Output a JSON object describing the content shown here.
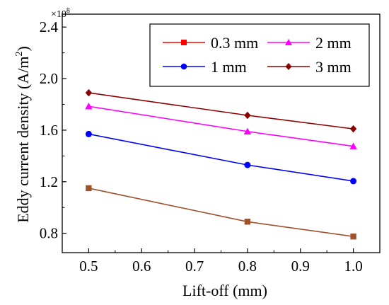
{
  "chart_data": {
    "type": "line",
    "xlabel": "Lift-off (mm)",
    "ylabel": "Eddy current density (A/m",
    "ylabel_sup": "2",
    "ylabel_close": ")",
    "y_multiplier": "×10",
    "y_multiplier_exp": "8",
    "xlim": [
      0.45,
      1.05
    ],
    "ylim": [
      0.65,
      2.5
    ],
    "xticks": [
      "0.5",
      "0.6",
      "0.7",
      "0.8",
      "0.9",
      "1.0"
    ],
    "yticks": [
      "0.8",
      "1.2",
      "1.6",
      "2.0",
      "2.4"
    ],
    "legend_position": "top-right",
    "series": [
      {
        "name": "0.3 mm",
        "color": "#a0522d",
        "legend_color": "#ff0000",
        "marker": "square",
        "x": [
          0.5,
          0.8,
          1.0
        ],
        "y": [
          1.15,
          0.89,
          0.775
        ]
      },
      {
        "name": "2 mm",
        "color": "#ff00ff",
        "legend_color": "#ff00ff",
        "marker": "triangle",
        "x": [
          0.5,
          0.8,
          1.0
        ],
        "y": [
          1.785,
          1.59,
          1.475
        ]
      },
      {
        "name": "1 mm",
        "color": "#0000ff",
        "legend_color": "#0000ff",
        "marker": "circle",
        "x": [
          0.5,
          0.8,
          1.0
        ],
        "y": [
          1.57,
          1.33,
          1.205
        ]
      },
      {
        "name": "3 mm",
        "color": "#8b0000",
        "legend_color": "#8b0000",
        "marker": "diamond",
        "x": [
          0.5,
          0.8,
          1.0
        ],
        "y": [
          1.89,
          1.715,
          1.61
        ]
      }
    ]
  }
}
